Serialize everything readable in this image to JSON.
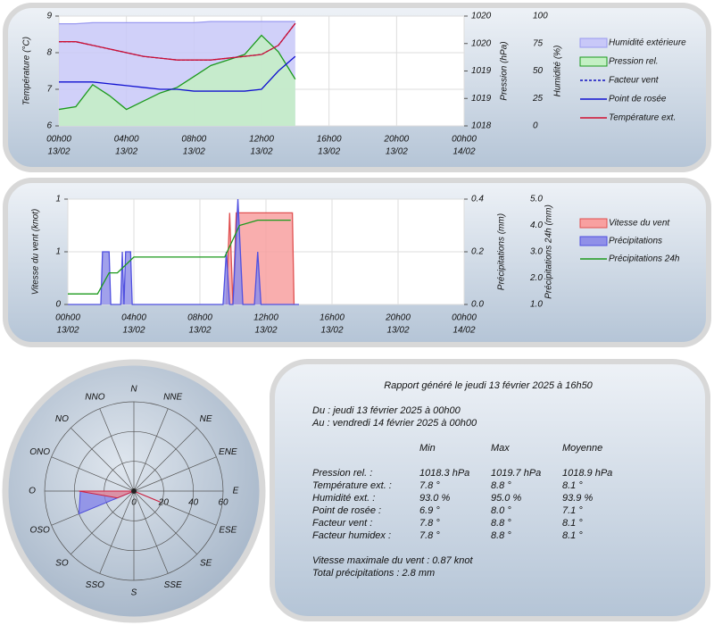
{
  "chart_data": [
    {
      "type": "line",
      "x": [
        0,
        1,
        2,
        3,
        4,
        5,
        6,
        7,
        8,
        9,
        10,
        11,
        12,
        13,
        14
      ],
      "xlim": [
        0,
        24
      ],
      "xticks": [
        {
          "value": 0,
          "label": "00h00"
        },
        {
          "value": 4,
          "label": "04h00"
        },
        {
          "value": 8,
          "label": "08h00"
        },
        {
          "value": 12,
          "label": "12h00"
        },
        {
          "value": 16,
          "label": "16h00"
        },
        {
          "value": 20,
          "label": "20h00"
        },
        {
          "value": 24,
          "label": "00h00"
        }
      ],
      "xtick_dates": [
        "13/02",
        "13/02",
        "13/02",
        "13/02",
        "13/02",
        "13/02",
        "14/02"
      ],
      "ylabel": "Température (°C)",
      "ylim": [
        6,
        9
      ],
      "yticks": [
        6,
        7,
        8,
        9
      ],
      "y2label": "Pression (hPa)",
      "y2lim": [
        1018,
        1020
      ],
      "y2ticks": [
        1018,
        {
          "value": 1018.5,
          "label": "1019"
        },
        1019,
        {
          "value": 1019.5,
          "label": "1020"
        },
        1020
      ],
      "y3label": "Humidité (%)",
      "y3lim": [
        0,
        100
      ],
      "y3ticks": [
        0,
        25,
        50,
        75,
        100
      ],
      "grid": true,
      "series": [
        {
          "name": "Humidité extérieure",
          "color": "#9a9af0",
          "fill": "#c8c8f8",
          "axis": "y3",
          "values": [
            93,
            93,
            94,
            94,
            94,
            94,
            94,
            94,
            94,
            95,
            95,
            95,
            95,
            95,
            95
          ]
        },
        {
          "name": "Pression rel.",
          "color": "#1c9a1c",
          "fill": "#c4f0c4",
          "axis": "y2",
          "values": [
            1018.3,
            1018.35,
            1018.75,
            1018.55,
            1018.3,
            1018.45,
            1018.6,
            1018.7,
            1018.9,
            1019.1,
            1019.2,
            1019.3,
            1019.65,
            1019.35,
            1018.85
          ]
        },
        {
          "name": "Facteur vent",
          "color": "#1010c0",
          "dash": true,
          "values": [
            8.3,
            8.3,
            8.2,
            8.1,
            8.0,
            7.9,
            7.85,
            7.8,
            7.8,
            7.8,
            7.85,
            7.9,
            7.95,
            8.2,
            8.8
          ]
        },
        {
          "name": "Point de rosée",
          "color": "#1010d0",
          "values": [
            7.2,
            7.2,
            7.2,
            7.15,
            7.1,
            7.05,
            7.0,
            7.0,
            6.95,
            6.95,
            6.95,
            6.95,
            7.0,
            7.5,
            7.9
          ]
        },
        {
          "name": "Température ext.",
          "color": "#d01030",
          "values": [
            8.3,
            8.3,
            8.2,
            8.1,
            8.0,
            7.9,
            7.85,
            7.8,
            7.8,
            7.8,
            7.85,
            7.9,
            7.95,
            8.2,
            8.8
          ]
        }
      ]
    },
    {
      "type": "line",
      "xlim": [
        0,
        24
      ],
      "xticks": [
        {
          "value": 0,
          "label": "00h00"
        },
        {
          "value": 4,
          "label": "04h00"
        },
        {
          "value": 8,
          "label": "08h00"
        },
        {
          "value": 12,
          "label": "12h00"
        },
        {
          "value": 16,
          "label": "16h00"
        },
        {
          "value": 20,
          "label": "20h00"
        },
        {
          "value": 24,
          "label": "00h00"
        }
      ],
      "xtick_dates": [
        "13/02",
        "13/02",
        "13/02",
        "13/02",
        "13/02",
        "13/02",
        "14/02"
      ],
      "ylabel": "Vitesse du vent (knot)",
      "ylim": [
        0,
        1
      ],
      "yticks": [
        0,
        {
          "value": 0.5,
          "label": "1"
        },
        1
      ],
      "y2label": "Précipitations (mm)",
      "y2lim": [
        0,
        0.4
      ],
      "y2ticks": [
        {
          "value": 0,
          "label": "0.0"
        },
        0.2,
        0.4
      ],
      "y3label": "Précipitations 24h (mm)",
      "y3lim": [
        1,
        5
      ],
      "y3ticks": [
        {
          "value": 1,
          "label": "1.0"
        },
        {
          "value": 2,
          "label": "2.0"
        },
        {
          "value": 3,
          "label": "3.0"
        },
        {
          "value": 4,
          "label": "4.0"
        },
        {
          "value": 5,
          "label": "5.0"
        }
      ],
      "grid": true,
      "series": [
        {
          "name": "Vitesse du vent",
          "color": "#e05050",
          "fill": "#f8a0a0",
          "x": [
            9.6,
            9.8,
            10.0,
            10.2,
            10.5,
            13.6,
            13.7
          ],
          "values": [
            0,
            0.87,
            0,
            0.87,
            0.87,
            0.87,
            0
          ]
        },
        {
          "name": "Précipitations",
          "color": "#5050e0",
          "fill": "#9090e8",
          "axis": "y2",
          "x": [
            0,
            2.0,
            2.1,
            2.5,
            2.6,
            3.2,
            3.3,
            3.4,
            3.5,
            3.8,
            3.9,
            9.4,
            9.6,
            9.8,
            10.0,
            10.3,
            10.6,
            11.3,
            11.5,
            11.7,
            14
          ],
          "values": [
            0,
            0,
            0.2,
            0.2,
            0,
            0,
            0.2,
            0,
            0.2,
            0.2,
            0,
            0,
            0.2,
            0,
            0,
            0.4,
            0,
            0,
            0.2,
            0,
            0
          ]
        },
        {
          "name": "Précipitations 24h",
          "color": "#1c9a1c",
          "axis": "y3",
          "x": [
            0,
            1.8,
            2.5,
            3.0,
            4.0,
            9.5,
            10.4,
            11.5,
            13.5
          ],
          "values": [
            1.4,
            1.4,
            2.2,
            2.2,
            2.8,
            2.8,
            4.0,
            4.2,
            4.2
          ]
        }
      ]
    },
    {
      "type": "polar",
      "categories": [
        "N",
        "NNE",
        "NE",
        "ENE",
        "E",
        "ESE",
        "SE",
        "SSE",
        "S",
        "SSO",
        "SO",
        "OSO",
        "O",
        "ONO",
        "NO",
        "NNO"
      ],
      "rlim": [
        0,
        60
      ],
      "rticks": [
        0,
        20,
        40,
        60
      ],
      "series": [
        {
          "color": "#5050e0",
          "fill": "#8080e8",
          "values": [
            0,
            0,
            0,
            0,
            0,
            0,
            0,
            0,
            0,
            0,
            0,
            40,
            36,
            0,
            0,
            0
          ]
        },
        {
          "color": "#d02040",
          "fill": "#f09090",
          "values": [
            0,
            0,
            0,
            0,
            0,
            19,
            0,
            0,
            0,
            0,
            0,
            12,
            37,
            0,
            0,
            0
          ]
        }
      ]
    }
  ],
  "report": {
    "title": "Rapport généré le jeudi 13 février 2025 à 16h50",
    "from": "Du : jeudi 13 février 2025 à 00h00",
    "to": "Au : vendredi 14 février 2025 à 00h00",
    "columns": [
      "Min",
      "Max",
      "Moyenne"
    ],
    "rows": [
      [
        "Pression rel. :",
        "1018.3 hPa",
        "1019.7 hPa",
        "1018.9 hPa"
      ],
      [
        "Température ext. :",
        "7.8 °",
        "8.8 °",
        "8.1 °"
      ],
      [
        "Humidité ext. :",
        "93.0 %",
        "95.0 %",
        "93.9 %"
      ],
      [
        "Point de rosée :",
        "6.9 °",
        "8.0 °",
        "7.1 °"
      ],
      [
        "Facteur vent :",
        "7.8 °",
        "8.8 °",
        "8.1 °"
      ],
      [
        "Facteur humidex :",
        "7.8 °",
        "8.8 °",
        "8.1 °"
      ]
    ],
    "max_wind": "Vitesse maximale du vent : 0.87 knot",
    "total_precipitation": "Total précipitations : 2.8 mm"
  }
}
